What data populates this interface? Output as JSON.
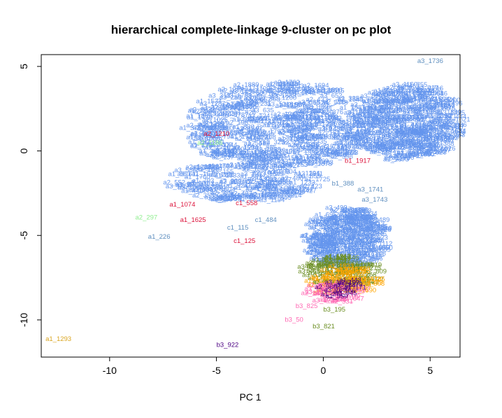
{
  "chart_data": {
    "type": "scatter",
    "title": "hierarchical complete-linkage 9-cluster on pc plot",
    "xlabel": "PC 1",
    "ylabel": "",
    "xlim": [
      -13.2,
      6.4
    ],
    "ylim": [
      -12.2,
      5.7
    ],
    "xticks": [
      -10,
      -5,
      0,
      5
    ],
    "yticks": [
      -10,
      -5,
      0,
      5
    ],
    "xtick_labels": [
      "-10",
      "-5",
      "0",
      "5"
    ],
    "ytick_labels": [
      "-10",
      "-5",
      "0",
      "5"
    ],
    "grid": false,
    "legend": "none",
    "colors": {
      "main_cluster": "#6495ed",
      "red": "#dc143c",
      "green": "#90ee90",
      "olive": "#6b8e23",
      "orange": "#ffa500",
      "gold": "#daa520",
      "pink": "#ff69b4",
      "purple": "#4b0082",
      "teal": "#20b2aa",
      "steel": "#5f8fbf"
    },
    "blobs": [
      {
        "name": "cluster-a-upper",
        "color": "#6495ed",
        "cx": -2.0,
        "cy": 1.4,
        "rx": 4.3,
        "ry": 2.6,
        "n": 320
      },
      {
        "name": "cluster-a-lower",
        "color": "#6495ed",
        "cx": -3.6,
        "cy": -1.9,
        "rx": 3.4,
        "ry": 1.2,
        "n": 110
      },
      {
        "name": "cluster-b",
        "color": "#6495ed",
        "cx": 3.9,
        "cy": 1.6,
        "rx": 2.4,
        "ry": 2.3,
        "n": 260
      },
      {
        "name": "cluster-c-upper",
        "color": "#6495ed",
        "cx": 1.1,
        "cy": -5.2,
        "rx": 1.7,
        "ry": 1.8,
        "n": 200
      },
      {
        "name": "cluster-c-mix-olive",
        "color": "#6b8e23",
        "cx": 0.9,
        "cy": -7.3,
        "rx": 1.6,
        "ry": 1.0,
        "n": 60
      },
      {
        "name": "cluster-c-mix-orange",
        "color": "#ffa500",
        "cx": 1.0,
        "cy": -7.8,
        "rx": 1.4,
        "ry": 0.9,
        "n": 40
      },
      {
        "name": "cluster-c-mix-pink",
        "color": "#ff69b4",
        "cx": 0.7,
        "cy": -8.4,
        "rx": 1.2,
        "ry": 0.7,
        "n": 25
      },
      {
        "name": "cluster-c-mix-purple",
        "color": "#4b0082",
        "cx": 0.6,
        "cy": -8.2,
        "rx": 1.1,
        "ry": 0.6,
        "n": 12
      }
    ],
    "labels": [
      {
        "text": "a1_1293",
        "x": -13.0,
        "y": -11.25,
        "color": "#daa520"
      },
      {
        "text": "b3_922",
        "x": -5.0,
        "y": -11.6,
        "color": "#4b0082"
      },
      {
        "text": "a1_226",
        "x": -8.2,
        "y": -5.2,
        "color": "#5f8fbf"
      },
      {
        "text": "a2_297",
        "x": -8.8,
        "y": -4.05,
        "color": "#90ee90"
      },
      {
        "text": "a1_1625",
        "x": -6.7,
        "y": -4.2,
        "color": "#dc143c"
      },
      {
        "text": "a1_1074",
        "x": -7.2,
        "y": -3.3,
        "color": "#dc143c"
      },
      {
        "text": "a2_1186",
        "x": -5.9,
        "y": 0.35,
        "color": "#90ee90"
      },
      {
        "text": "a2_1210",
        "x": -5.6,
        "y": 0.9,
        "color": "#dc143c"
      },
      {
        "text": "c1_115",
        "x": -4.5,
        "y": -4.65,
        "color": "#5f8fbf"
      },
      {
        "text": "c1_125",
        "x": -4.2,
        "y": -5.45,
        "color": "#dc143c"
      },
      {
        "text": "c1_558",
        "x": -4.1,
        "y": -3.2,
        "color": "#dc143c"
      },
      {
        "text": "c1_484",
        "x": -3.2,
        "y": -4.2,
        "color": "#5f8fbf"
      },
      {
        "text": "b1_388",
        "x": 0.4,
        "y": -2.05,
        "color": "#5f8fbf"
      },
      {
        "text": "b1_1917",
        "x": 1.0,
        "y": -0.7,
        "color": "#dc143c"
      },
      {
        "text": "a3_1741",
        "x": 1.6,
        "y": -2.4,
        "color": "#5f8fbf"
      },
      {
        "text": "a3_1743",
        "x": 1.8,
        "y": -3.0,
        "color": "#5f8fbf"
      },
      {
        "text": "a3_1736",
        "x": 4.4,
        "y": 5.2,
        "color": "#5f8fbf"
      },
      {
        "text": "b3_50",
        "x": -1.8,
        "y": -10.1,
        "color": "#ff69b4"
      },
      {
        "text": "b3_195",
        "x": 0.0,
        "y": -9.5,
        "color": "#6b8e23"
      },
      {
        "text": "b3_821",
        "x": -0.5,
        "y": -10.5,
        "color": "#6b8e23"
      },
      {
        "text": "b3_825",
        "x": -1.3,
        "y": -9.3,
        "color": "#ff69b4"
      }
    ]
  }
}
